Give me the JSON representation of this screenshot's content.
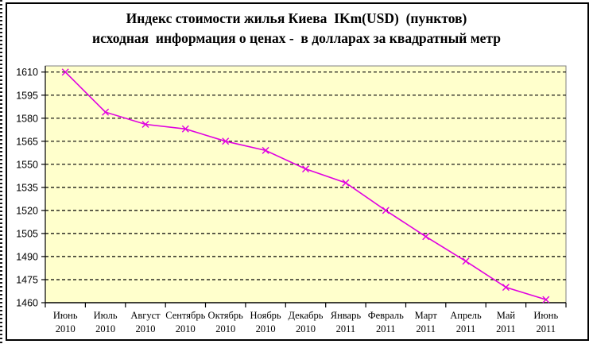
{
  "window": {
    "background": "#ffffff",
    "frame_border_color": "#000000",
    "left_dotted_edge": "dashed-black-strip"
  },
  "title": {
    "line1": "Индекс стоимости жилья Киева  IKm(USD)  (пунктов)",
    "line2": "исходная  информация о ценах -  в долларах за квадратный метр"
  },
  "chart_data": {
    "type": "line",
    "title": "Индекс стоимости жилья Киева IKm(USD) (пунктов)",
    "subtitle": "исходная информация о ценах - в долларах за квадратный метр",
    "categories": [
      "Июнь 2010",
      "Июль 2010",
      "Август 2010",
      "Сентябрь 2010",
      "Октябрь 2010",
      "Ноябрь 2010",
      "Декабрь 2010",
      "Январь 2011",
      "Февраль 2011",
      "Март 2011",
      "Апрель 2011",
      "Май 2011",
      "Июнь 2011"
    ],
    "values": [
      1610,
      1584,
      1576,
      1573,
      1565,
      1559,
      1547,
      1538,
      1520,
      1503,
      1487,
      1470,
      1462
    ],
    "xlabel": "",
    "ylabel": "",
    "ylim": [
      1460,
      1614
    ],
    "yticks": [
      1460,
      1475,
      1490,
      1505,
      1520,
      1535,
      1550,
      1565,
      1580,
      1595,
      1610
    ],
    "grid": "horizontal-dashed",
    "legend": "none",
    "marker": "x",
    "colors": {
      "plot_bg": "#FFFFCC",
      "line": "#E000E0",
      "grid": "#000000",
      "plot_border": "#808080",
      "axis": "#000000",
      "text": "#000000"
    }
  }
}
